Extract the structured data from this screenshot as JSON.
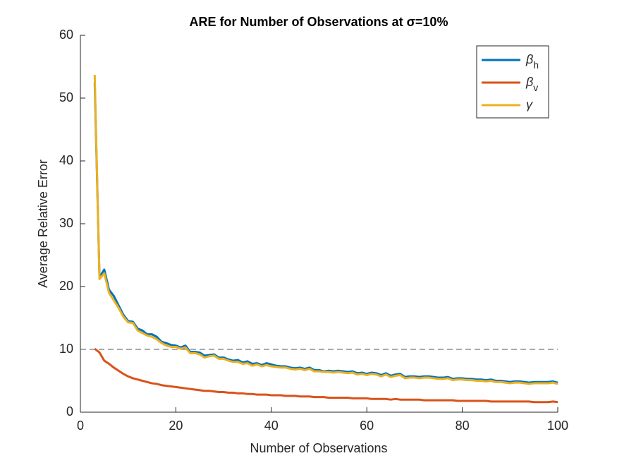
{
  "chart_data": {
    "type": "line",
    "title": "ARE for Number of Observations at σ=10%",
    "x_label": "Number of Observations",
    "y_label": "Average Relative Error",
    "x": [
      3,
      4,
      5,
      6,
      7,
      8,
      9,
      10,
      11,
      12,
      13,
      14,
      15,
      16,
      17,
      18,
      19,
      20,
      21,
      22,
      23,
      24,
      25,
      26,
      27,
      28,
      29,
      30,
      31,
      32,
      33,
      34,
      35,
      36,
      37,
      38,
      39,
      40,
      41,
      42,
      43,
      44,
      45,
      46,
      47,
      48,
      49,
      50,
      51,
      52,
      53,
      54,
      55,
      56,
      57,
      58,
      59,
      60,
      61,
      62,
      63,
      64,
      65,
      66,
      67,
      68,
      69,
      70,
      71,
      72,
      73,
      74,
      75,
      76,
      77,
      78,
      79,
      80,
      81,
      82,
      83,
      84,
      85,
      86,
      87,
      88,
      89,
      90,
      91,
      92,
      93,
      94,
      95,
      96,
      97,
      98,
      99,
      100
    ],
    "series": [
      {
        "name": "βh",
        "color": "#0072BD",
        "values": [
          52.5,
          21.5,
          22.7,
          19.5,
          18.5,
          17,
          15.5,
          14.5,
          14.4,
          13.3,
          13,
          12.4,
          12.4,
          12,
          11.2,
          11,
          10.7,
          10.6,
          10.3,
          10.6,
          9.6,
          9.6,
          9.5,
          9,
          9.1,
          9.2,
          8.7,
          8.7,
          8.4,
          8.2,
          8.3,
          7.9,
          8.1,
          7.7,
          7.8,
          7.5,
          7.8,
          7.6,
          7.4,
          7.3,
          7.3,
          7.1,
          7.0,
          7.1,
          6.9,
          7.1,
          6.7,
          6.7,
          6.5,
          6.6,
          6.5,
          6.6,
          6.5,
          6.4,
          6.5,
          6.2,
          6.3,
          6.1,
          6.3,
          6.2,
          5.9,
          6.2,
          5.8,
          6.0,
          6.1,
          5.6,
          5.7,
          5.7,
          5.6,
          5.7,
          5.7,
          5.6,
          5.5,
          5.5,
          5.6,
          5.3,
          5.4,
          5.4,
          5.3,
          5.3,
          5.2,
          5.2,
          5.1,
          5.2,
          5.0,
          5.0,
          4.9,
          4.8,
          4.9,
          4.9,
          4.8,
          4.7,
          4.8,
          4.8,
          4.8,
          4.8,
          4.9,
          4.7
        ]
      },
      {
        "name": "βv",
        "color": "#D95319",
        "values": [
          10.1,
          9.5,
          8.2,
          7.7,
          7.1,
          6.6,
          6.1,
          5.7,
          5.4,
          5.2,
          5.0,
          4.8,
          4.6,
          4.5,
          4.3,
          4.2,
          4.1,
          4.0,
          3.9,
          3.8,
          3.7,
          3.6,
          3.5,
          3.4,
          3.4,
          3.3,
          3.2,
          3.2,
          3.1,
          3.1,
          3.0,
          3.0,
          2.9,
          2.9,
          2.8,
          2.8,
          2.8,
          2.7,
          2.7,
          2.7,
          2.6,
          2.6,
          2.6,
          2.5,
          2.5,
          2.5,
          2.4,
          2.4,
          2.4,
          2.3,
          2.3,
          2.3,
          2.3,
          2.3,
          2.2,
          2.2,
          2.2,
          2.2,
          2.1,
          2.1,
          2.1,
          2.1,
          2.0,
          2.1,
          2.0,
          2.0,
          2.0,
          2.0,
          2.0,
          1.9,
          1.9,
          1.9,
          1.9,
          1.9,
          1.9,
          1.9,
          1.8,
          1.8,
          1.8,
          1.8,
          1.8,
          1.8,
          1.8,
          1.7,
          1.7,
          1.7,
          1.7,
          1.7,
          1.7,
          1.7,
          1.7,
          1.7,
          1.6,
          1.6,
          1.6,
          1.6,
          1.7,
          1.6
        ]
      },
      {
        "name": "γ",
        "color": "#EDB120",
        "values": [
          53.7,
          21.2,
          22.1,
          19,
          17.8,
          16.6,
          15.2,
          14.3,
          14.2,
          13.0,
          12.6,
          12.2,
          12.0,
          11.6,
          11,
          10.6,
          10.4,
          10.4,
          10.1,
          10.3,
          9.4,
          9.4,
          9.2,
          8.7,
          8.9,
          9.0,
          8.5,
          8.5,
          8.2,
          8.0,
          8.0,
          7.7,
          7.8,
          7.4,
          7.6,
          7.3,
          7.5,
          7.3,
          7.2,
          7.1,
          7.1,
          6.9,
          6.8,
          6.9,
          6.7,
          6.9,
          6.5,
          6.5,
          6.4,
          6.4,
          6.3,
          6.4,
          6.3,
          6.2,
          6.3,
          6.0,
          6.1,
          5.9,
          6.1,
          6.0,
          5.7,
          6.0,
          5.6,
          5.8,
          5.9,
          5.4,
          5.5,
          5.5,
          5.4,
          5.5,
          5.5,
          5.4,
          5.3,
          5.3,
          5.4,
          5.1,
          5.2,
          5.2,
          5.1,
          5.1,
          5.0,
          5.0,
          4.9,
          5.0,
          4.8,
          4.8,
          4.7,
          4.6,
          4.7,
          4.7,
          4.6,
          4.5,
          4.6,
          4.6,
          4.6,
          4.6,
          4.7,
          4.5
        ]
      }
    ],
    "reference_line": 10,
    "xlim": [
      0,
      100
    ],
    "xticks": [
      0,
      20,
      40,
      60,
      80,
      100
    ],
    "ylim": [
      0,
      60
    ],
    "yticks": [
      0,
      10,
      20,
      30,
      40,
      50,
      60
    ],
    "legend": "top-right"
  }
}
